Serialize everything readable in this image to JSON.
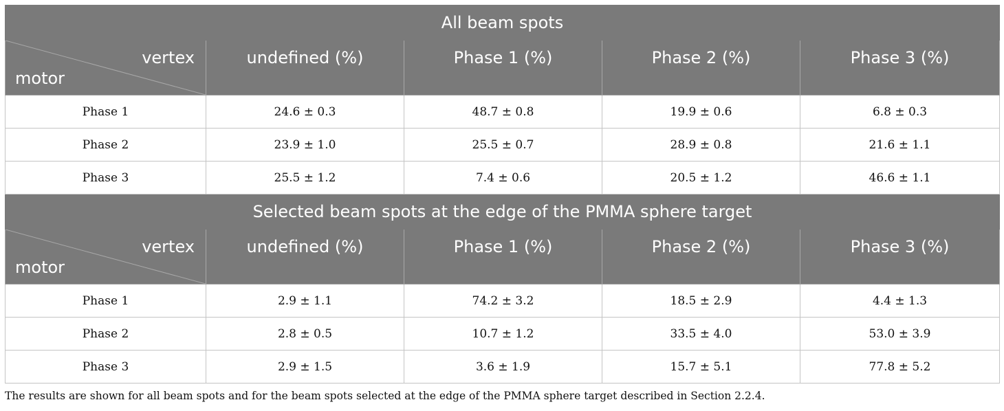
{
  "sections": [
    {
      "title": "All beam spots",
      "corner": {
        "top": "vertex",
        "bottom": "motor"
      },
      "columns": [
        "undefined (%)",
        "Phase 1 (%)",
        "Phase 2 (%)",
        "Phase 3 (%)"
      ],
      "rows": [
        {
          "label": "Phase 1",
          "values": [
            "24.6 ± 0.3",
            "48.7 ± 0.8",
            "19.9 ± 0.6",
            "6.8 ± 0.3"
          ]
        },
        {
          "label": "Phase 2",
          "values": [
            "23.9 ± 1.0",
            "25.5 ± 0.7",
            "28.9 ± 0.8",
            "21.6 ± 1.1"
          ]
        },
        {
          "label": "Phase 3",
          "values": [
            "25.5 ± 1.2",
            "7.4 ± 0.6",
            "20.5 ± 1.2",
            "46.6 ± 1.1"
          ]
        }
      ]
    },
    {
      "title": "Selected beam spots at the edge of the PMMA sphere target",
      "corner": {
        "top": "vertex",
        "bottom": "motor"
      },
      "columns": [
        "undefined (%)",
        "Phase 1 (%)",
        "Phase 2 (%)",
        "Phase 3 (%)"
      ],
      "rows": [
        {
          "label": "Phase 1",
          "values": [
            "2.9 ± 1.1",
            "74.2 ± 3.2",
            "18.5 ± 2.9",
            "4.4 ± 1.3"
          ]
        },
        {
          "label": "Phase 2",
          "values": [
            "2.8 ± 0.5",
            "10.7 ± 1.2",
            "33.5 ± 4.0",
            "53.0 ± 3.9"
          ]
        },
        {
          "label": "Phase 3",
          "values": [
            "2.9 ± 1.5",
            "3.6 ± 1.9",
            "15.7 ± 5.1",
            "77.8 ± 5.2"
          ]
        }
      ]
    }
  ],
  "caption": "The results are shown for all beam spots and for the beam spots selected at the edge of the PMMA sphere target described in Section 2.2.4.",
  "colors": {
    "header_bg": "#7a7a7a",
    "header_text": "#ffffff",
    "border": "#c4c4c4"
  }
}
